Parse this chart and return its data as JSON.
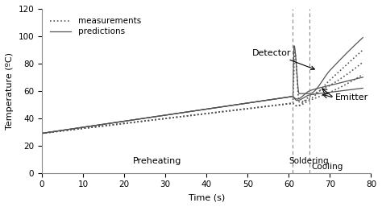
{
  "xlabel": "Time (s)",
  "ylabel": "Temperature (ºC)",
  "xlim": [
    0,
    80
  ],
  "ylim": [
    0,
    120
  ],
  "xticks": [
    0,
    10,
    20,
    30,
    40,
    50,
    60,
    70,
    80
  ],
  "yticks": [
    0,
    20,
    40,
    60,
    80,
    100,
    120
  ],
  "vline1": 61,
  "vline2": 65,
  "preheating_label": "Preheating",
  "preheating_x": 28,
  "preheating_y": 7,
  "soldering_label": "Soldering",
  "soldering_x": 60.0,
  "soldering_y": 7,
  "cooling_label": "Cooling",
  "cooling_x": 65.5,
  "cooling_y": 3,
  "detector_label": "Detector",
  "emitter_label": "Emitter",
  "line_color": "#555555",
  "background_color": "#ffffff",
  "legend_measurements": "measurements",
  "legend_predictions": "predictions"
}
